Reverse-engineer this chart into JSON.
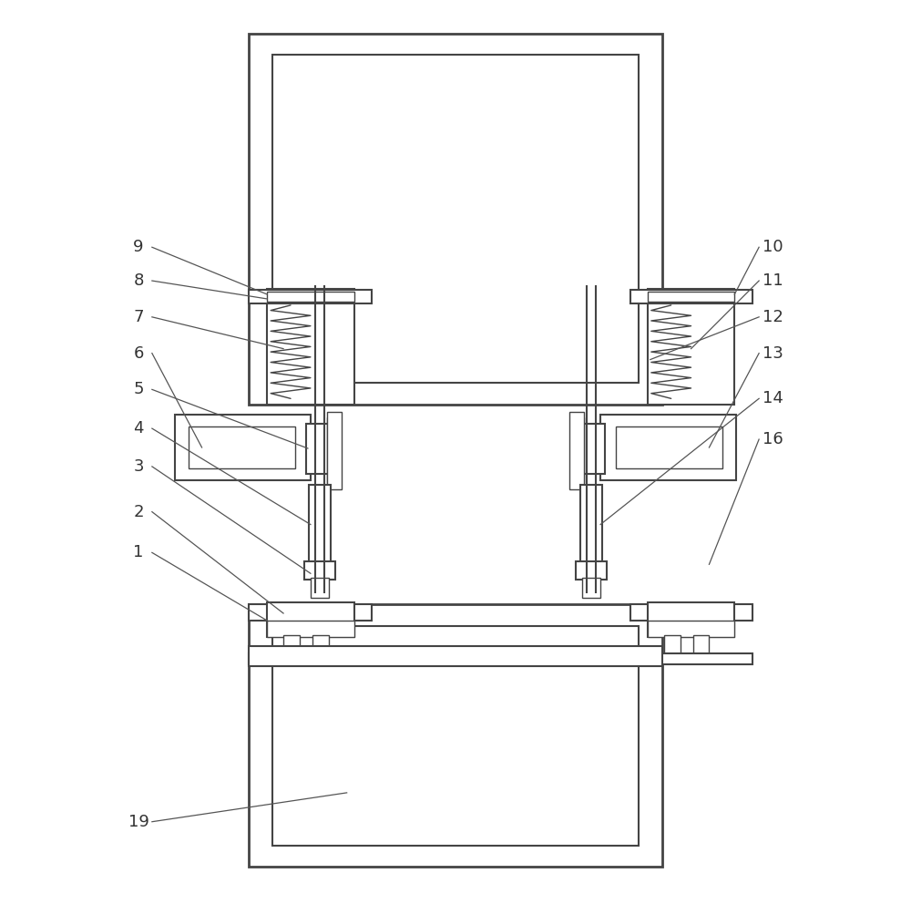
{
  "bg": "#ffffff",
  "lc": "#444444",
  "lw_thick": 2.0,
  "lw_med": 1.5,
  "lw_thin": 1.0,
  "lw_spring": 1.0,
  "label_fs": 13,
  "label_color": "#333333",
  "anno_lw": 0.9,
  "anno_color": "#555555"
}
